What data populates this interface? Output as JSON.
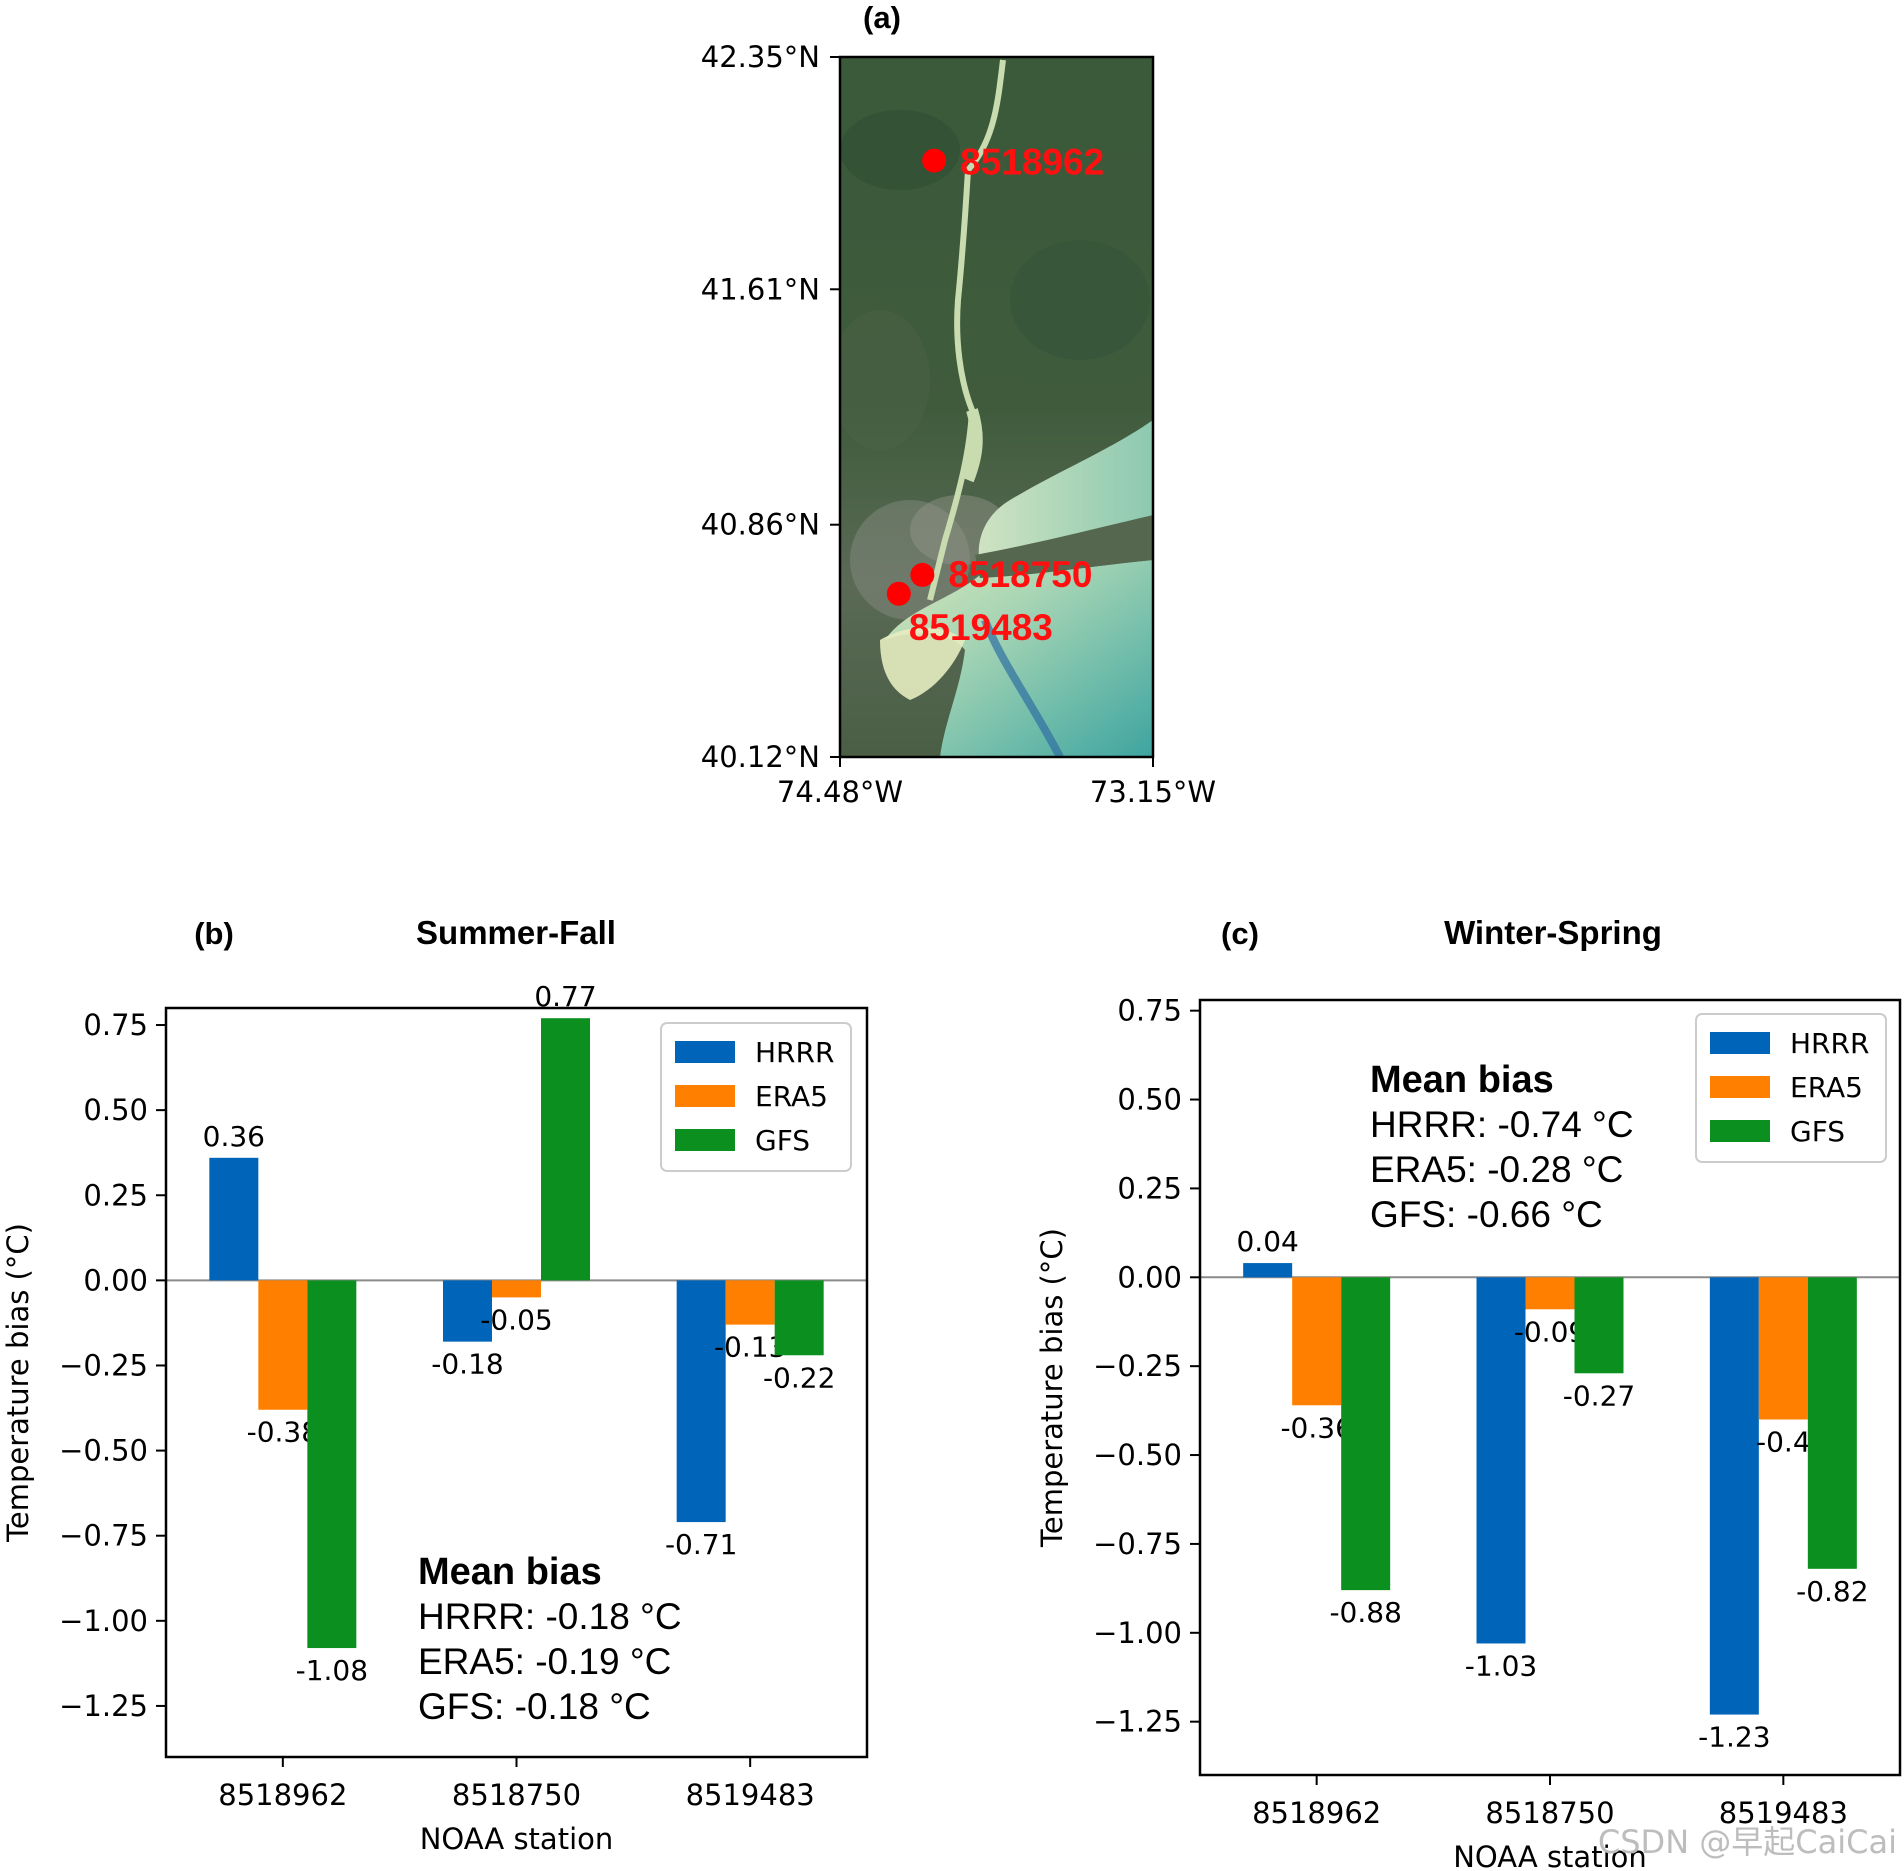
{
  "chart_data": [
    {
      "type": "map",
      "panel": "(a)",
      "y_ticks": [
        "42.35°N",
        "41.61°N",
        "40.86°N",
        "40.12°N"
      ],
      "x_ticks": [
        "74.48°W",
        "73.15°W"
      ],
      "stations": [
        {
          "id": "8518962",
          "lat": 42.02,
          "lon": -74.08
        },
        {
          "id": "8518750",
          "lat": 40.7,
          "lon": -74.13
        },
        {
          "id": "8519483",
          "lat": 40.64,
          "lon": -74.23
        }
      ]
    },
    {
      "type": "bar",
      "panel": "(b)",
      "title": "Summer-Fall",
      "xlabel": "NOAA station",
      "ylabel": "Temperature bias (°C)",
      "categories": [
        "8518962",
        "8518750",
        "8519483"
      ],
      "ylim": [
        -1.4,
        0.8
      ],
      "yticks": [
        "0.75",
        "0.50",
        "0.25",
        "0.00",
        "−0.25",
        "−0.50",
        "−0.75",
        "−1.00",
        "−1.25"
      ],
      "series": [
        {
          "name": "HRRR",
          "color": "#0065b8",
          "values": [
            0.36,
            -0.18,
            -0.71
          ],
          "labels": [
            "0.36",
            "-0.18",
            "-0.71"
          ]
        },
        {
          "name": "ERA5",
          "color": "#ff7f00",
          "values": [
            -0.38,
            -0.05,
            -0.13
          ],
          "labels": [
            "-0.38",
            "-0.05",
            "-0.13"
          ]
        },
        {
          "name": "GFS",
          "color": "#0b8f1f",
          "values": [
            -1.08,
            0.77,
            -0.22
          ],
          "labels": [
            "-1.08",
            "0.77",
            "-0.22"
          ]
        }
      ],
      "legend_position": "top-right",
      "mean_bias": {
        "title": "Mean bias",
        "lines": [
          "HRRR: -0.18 °C",
          "ERA5: -0.19 °C",
          "GFS: -0.18 °C"
        ]
      }
    },
    {
      "type": "bar",
      "panel": "(c)",
      "title": "Winter-Spring",
      "xlabel": "NOAA station",
      "ylabel": "Temperature bias (°C)",
      "categories": [
        "8518962",
        "8518750",
        "8519483"
      ],
      "ylim": [
        -1.4,
        0.78
      ],
      "yticks": [
        "0.75",
        "0.50",
        "0.25",
        "0.00",
        "−0.25",
        "−0.50",
        "−0.75",
        "−1.00",
        "−1.25"
      ],
      "series": [
        {
          "name": "HRRR",
          "color": "#0065b8",
          "values": [
            0.04,
            -1.03,
            -1.23
          ],
          "labels": [
            "0.04",
            "-1.03",
            "-1.23"
          ]
        },
        {
          "name": "ERA5",
          "color": "#ff7f00",
          "values": [
            -0.36,
            -0.09,
            -0.4
          ],
          "labels": [
            "-0.36",
            "-0.09",
            "-0.4"
          ]
        },
        {
          "name": "GFS",
          "color": "#0b8f1f",
          "values": [
            -0.88,
            -0.27,
            -0.82
          ],
          "labels": [
            "-0.88",
            "-0.27",
            "-0.82"
          ]
        }
      ],
      "legend_position": "top-right",
      "mean_bias": {
        "title": "Mean bias",
        "lines": [
          "HRRR: -0.74 °C",
          "ERA5: -0.28 °C",
          "GFS: -0.66 °C"
        ]
      }
    }
  ],
  "watermark": "CSDN @早起CaiCai"
}
